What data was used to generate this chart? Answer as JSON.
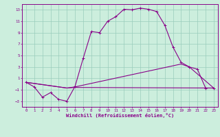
{
  "xlabel": "Windchill (Refroidissement éolien,°C)",
  "bg_color": "#cceedd",
  "line_color": "#880088",
  "grid_color": "#99ccbb",
  "xlim": [
    -0.5,
    23.5
  ],
  "ylim": [
    -4.0,
    14.0
  ],
  "xticks": [
    0,
    1,
    2,
    3,
    4,
    5,
    6,
    7,
    8,
    9,
    10,
    11,
    12,
    13,
    14,
    15,
    16,
    17,
    18,
    19,
    20,
    21,
    22,
    23
  ],
  "yticks": [
    -3,
    -1,
    1,
    3,
    5,
    7,
    9,
    11,
    13
  ],
  "line1_x": [
    0,
    1,
    2,
    3,
    4,
    5,
    6,
    7,
    8,
    9,
    10,
    11,
    12,
    13,
    14,
    15,
    16,
    17,
    18,
    19,
    20,
    21,
    22,
    23
  ],
  "line1_y": [
    0.3,
    -0.5,
    -2.3,
    -1.5,
    -2.7,
    -3.0,
    -0.4,
    4.5,
    9.2,
    9.0,
    11.0,
    11.8,
    13.1,
    13.0,
    13.3,
    13.1,
    12.7,
    10.3,
    6.5,
    3.8,
    3.0,
    2.6,
    -0.7,
    -0.7
  ],
  "line2_x": [
    0,
    5,
    6,
    23
  ],
  "line2_y": [
    0.3,
    -0.7,
    -0.6,
    -0.7
  ],
  "line3_x": [
    0,
    5,
    6,
    19,
    20,
    23
  ],
  "line3_y": [
    0.3,
    -0.7,
    -0.5,
    3.5,
    3.0,
    -0.7
  ]
}
